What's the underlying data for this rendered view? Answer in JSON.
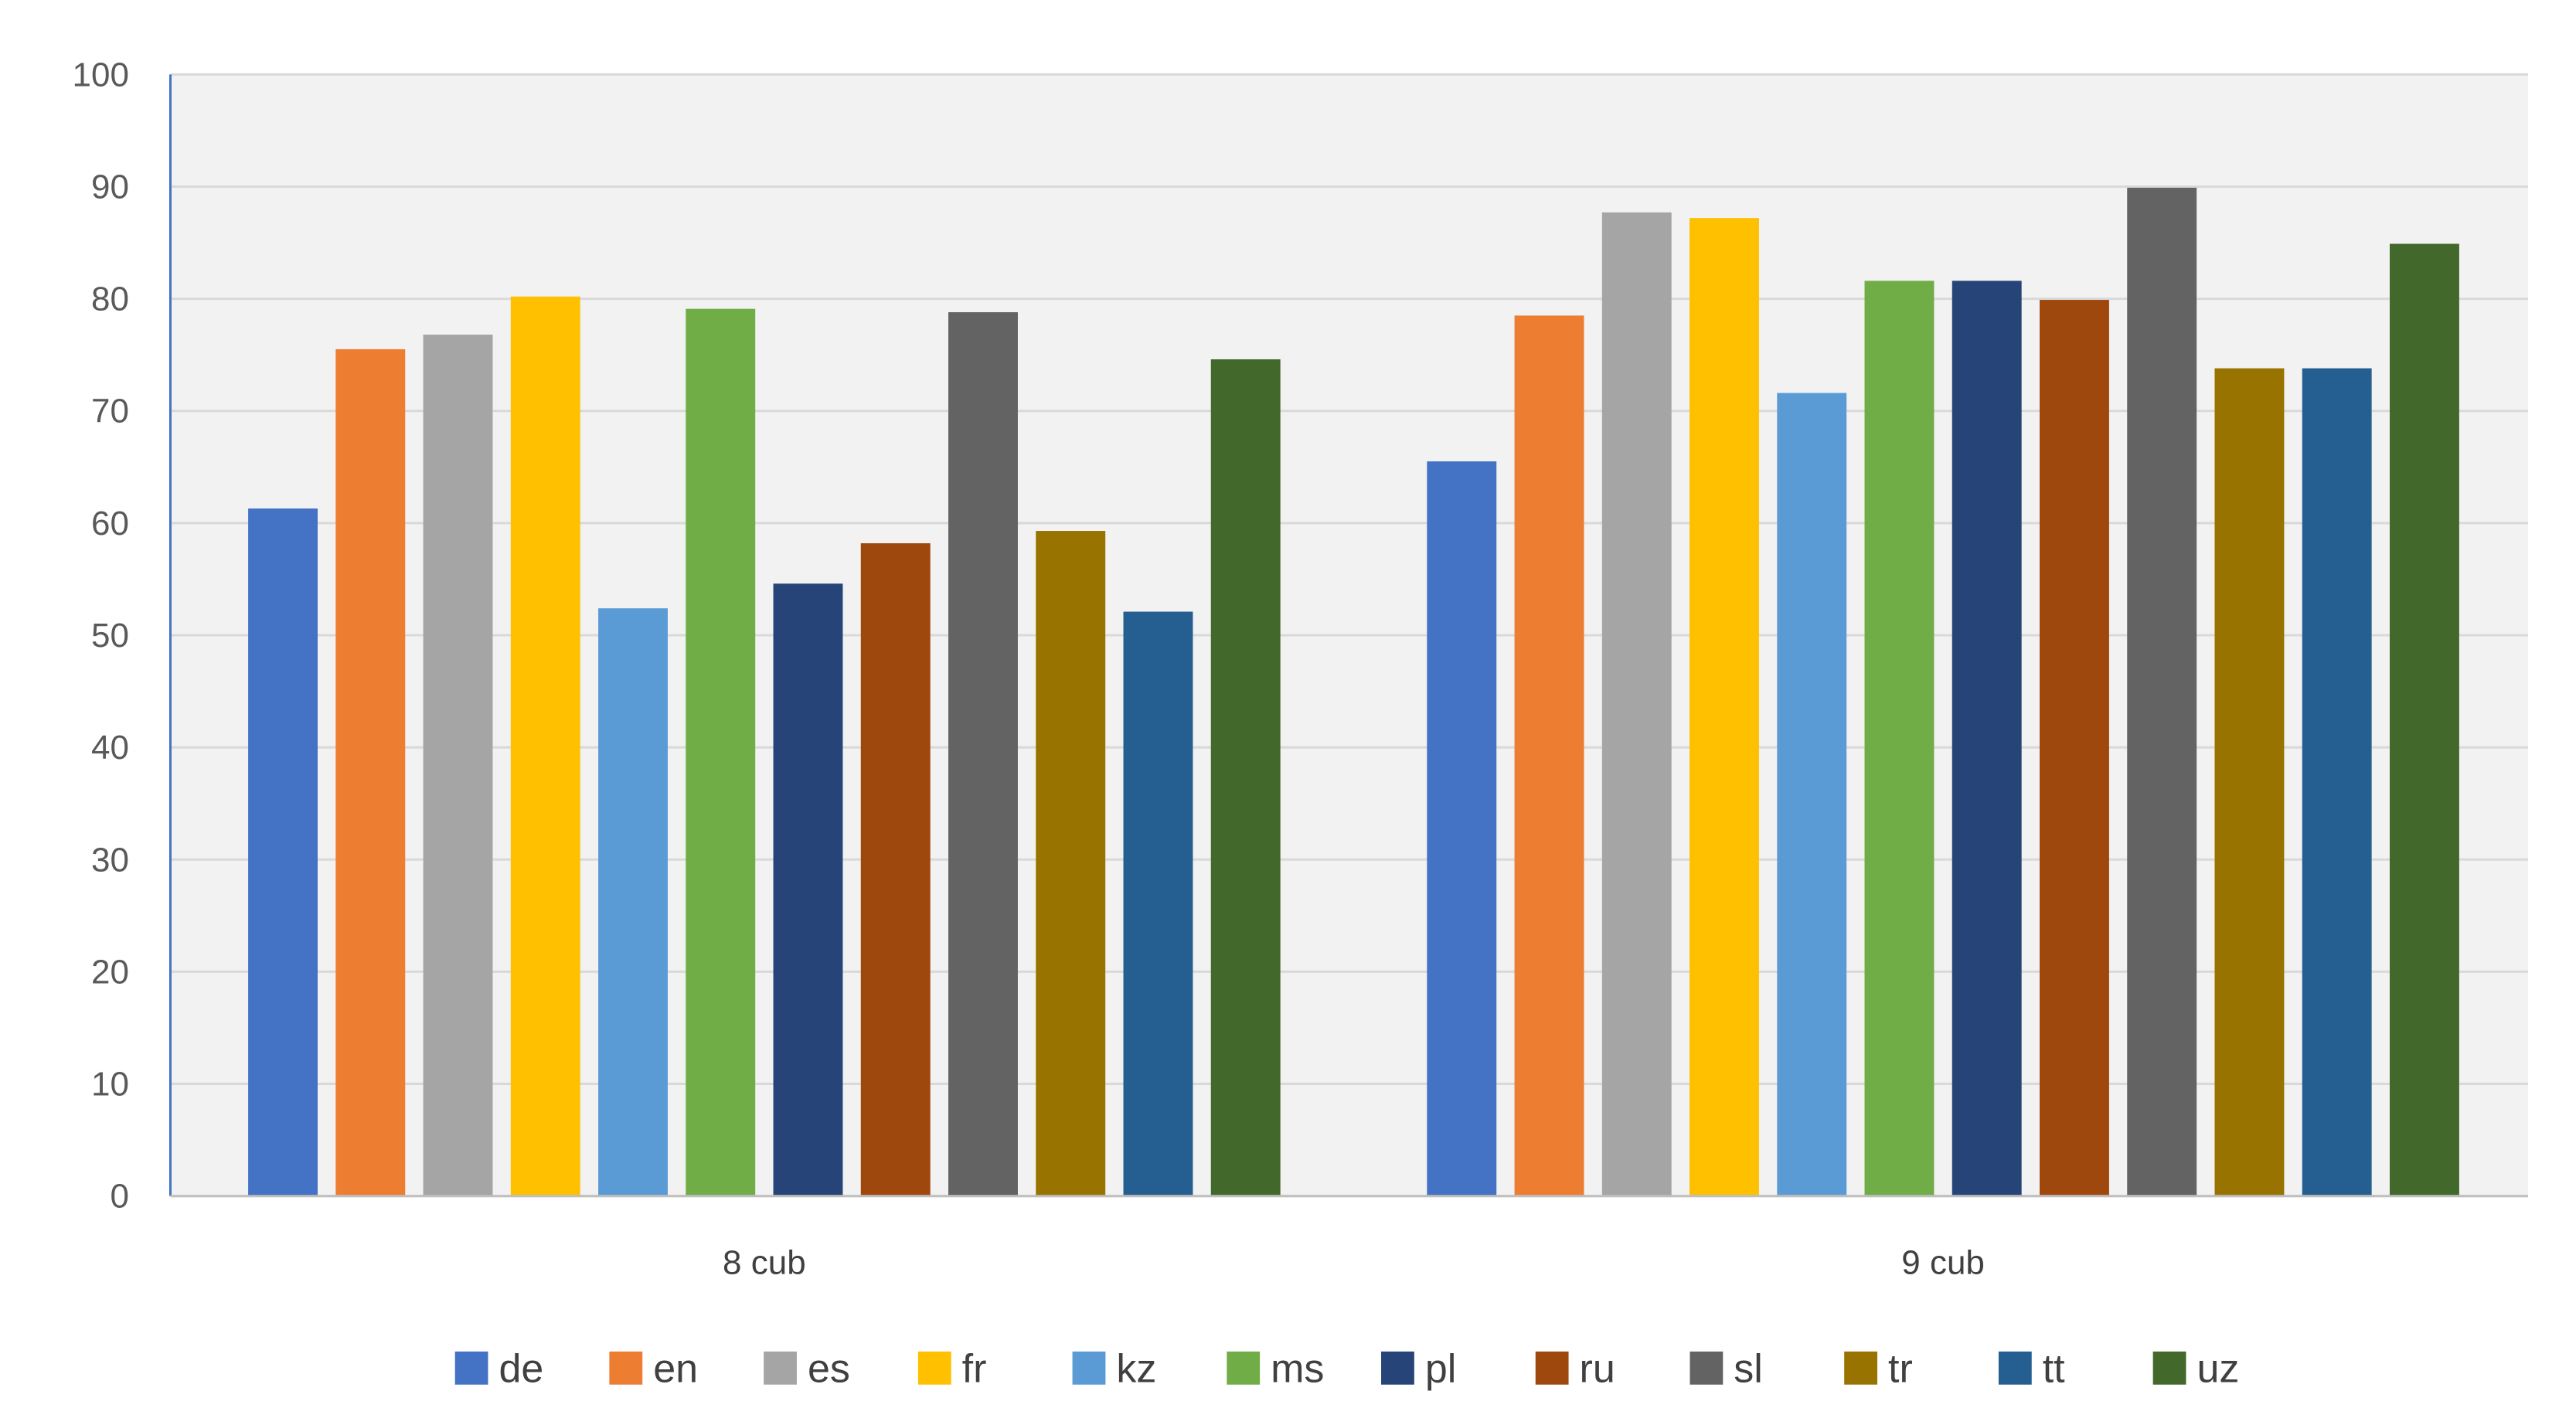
{
  "chart_data": {
    "type": "bar",
    "categories": [
      "8 cub",
      "9 cub"
    ],
    "ylim": [
      0,
      100
    ],
    "yticks": [
      0,
      10,
      20,
      30,
      40,
      50,
      60,
      70,
      80,
      90,
      100
    ],
    "grid": true,
    "legend_position": "bottom",
    "series": [
      {
        "name": "de",
        "color": "#4472C4",
        "values": [
          61.3,
          65.5
        ]
      },
      {
        "name": "en",
        "color": "#ED7D31",
        "values": [
          75.5,
          78.5
        ]
      },
      {
        "name": "es",
        "color": "#A5A5A5",
        "values": [
          76.8,
          87.7
        ]
      },
      {
        "name": "fr",
        "color": "#FFC000",
        "values": [
          80.2,
          87.2
        ]
      },
      {
        "name": "kz",
        "color": "#5B9BD5",
        "values": [
          52.4,
          71.6
        ]
      },
      {
        "name": "ms",
        "color": "#70AD47",
        "values": [
          79.1,
          81.6
        ]
      },
      {
        "name": "pl",
        "color": "#264478",
        "values": [
          54.6,
          81.6
        ]
      },
      {
        "name": "ru",
        "color": "#9E480E",
        "values": [
          58.2,
          79.9
        ]
      },
      {
        "name": "sl",
        "color": "#636363",
        "values": [
          78.8,
          89.9
        ]
      },
      {
        "name": "tr",
        "color": "#997300",
        "values": [
          59.3,
          73.8
        ]
      },
      {
        "name": "tt",
        "color": "#255E91",
        "values": [
          52.1,
          73.8
        ]
      },
      {
        "name": "uz",
        "color": "#43682B",
        "values": [
          74.6,
          84.9
        ]
      }
    ]
  }
}
